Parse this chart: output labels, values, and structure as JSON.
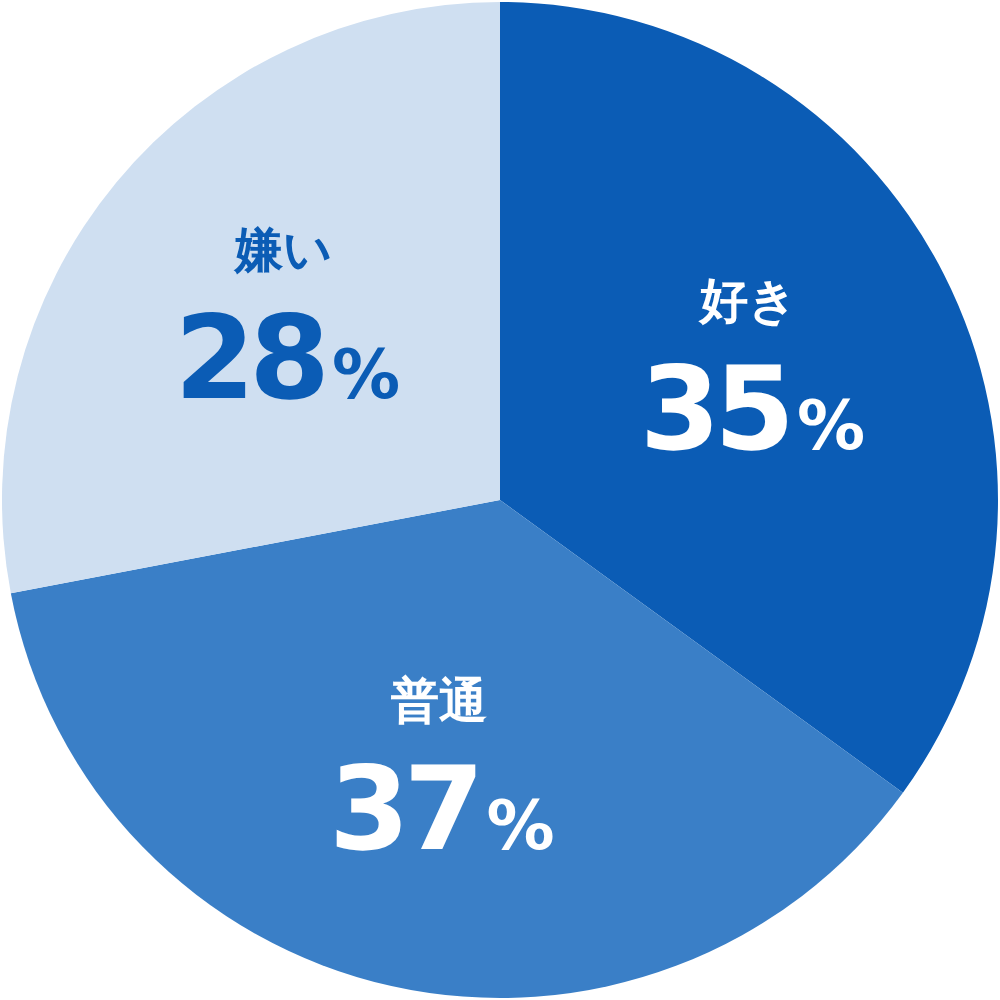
{
  "chart_data": {
    "type": "pie",
    "categories": [
      "好き",
      "普通",
      "嫌い"
    ],
    "values": [
      35,
      37,
      28
    ],
    "colors": [
      "#0b5cb5",
      "#3a7fc7",
      "#cfdff1"
    ],
    "value_labels": [
      "35%",
      "37%",
      "28%"
    ]
  }
}
